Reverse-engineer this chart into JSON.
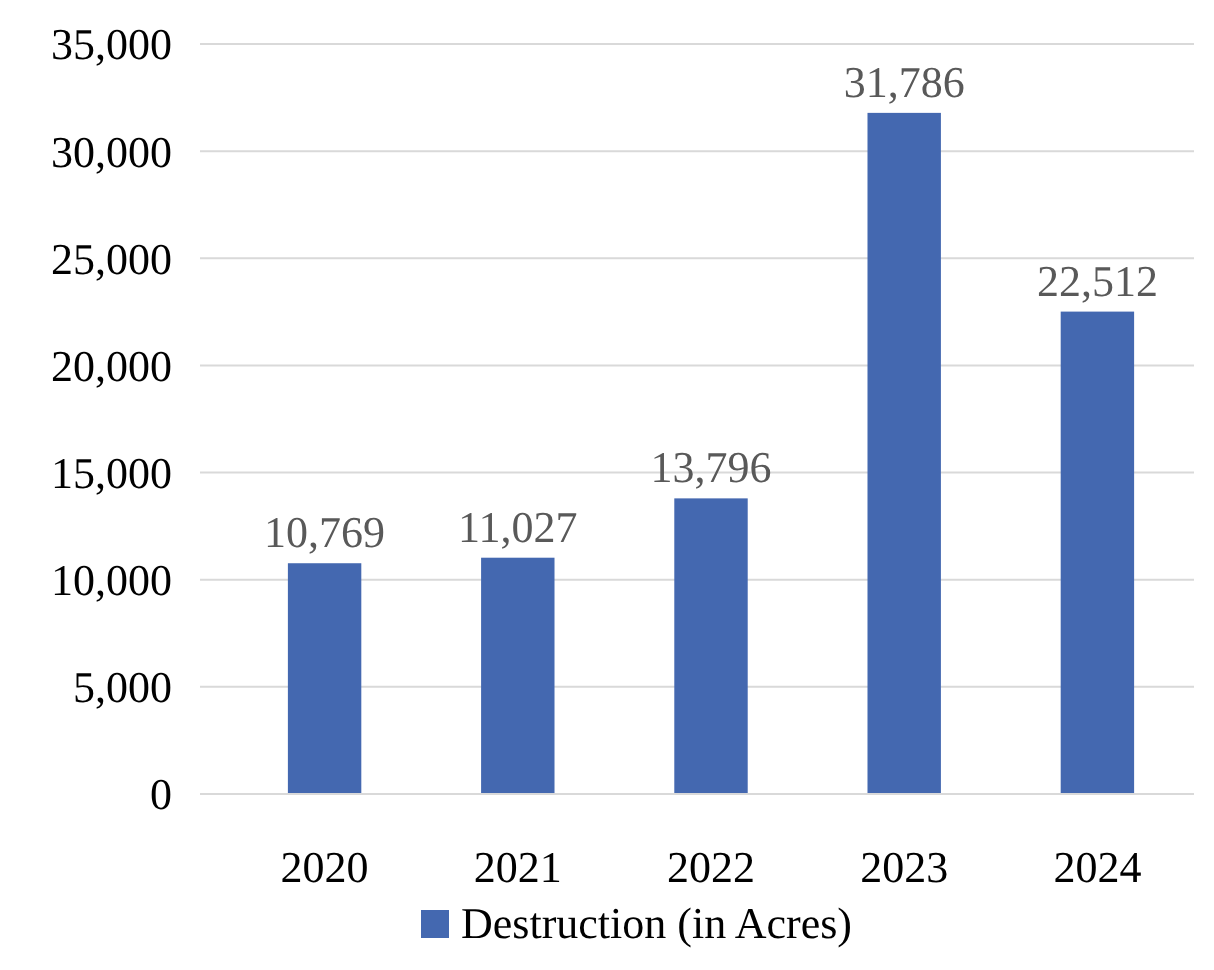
{
  "chart_data": {
    "type": "bar",
    "categories": [
      "2020",
      "2021",
      "2022",
      "2023",
      "2024"
    ],
    "series": [
      {
        "name": "Destruction (in Acres)",
        "color": "#4468b0",
        "values": [
          10769,
          11027,
          13796,
          31786,
          22512
        ],
        "value_labels": [
          "10,769",
          "11,027",
          "13,796",
          "31,786",
          "22,512"
        ]
      }
    ],
    "ylim": [
      0,
      35000
    ],
    "yticks": [
      {
        "value": 0,
        "label": "0"
      },
      {
        "value": 5000,
        "label": "5,000"
      },
      {
        "value": 10000,
        "label": "10,000"
      },
      {
        "value": 15000,
        "label": "15,000"
      },
      {
        "value": 20000,
        "label": "20,000"
      },
      {
        "value": 25000,
        "label": "25,000"
      },
      {
        "value": 30000,
        "label": "30,000"
      },
      {
        "value": 35000,
        "label": "35,000"
      }
    ],
    "grid": "y",
    "legend": "bottom"
  }
}
